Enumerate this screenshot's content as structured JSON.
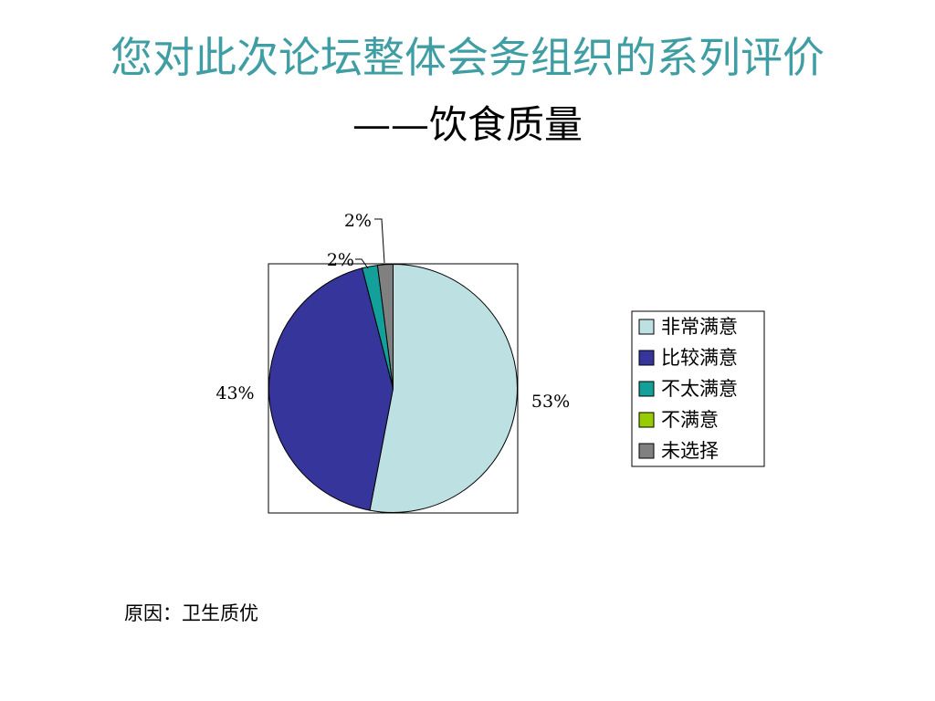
{
  "slide": {
    "title": "您对此次论坛整体会务组织的系列评价",
    "subtitle": "——饮食质量",
    "note": "原因：卫生质优"
  },
  "chart_data": {
    "type": "pie",
    "categories": [
      "非常满意",
      "比较满意",
      "不太满意",
      "不满意",
      "未选择"
    ],
    "values": [
      53,
      43,
      2,
      0,
      2
    ],
    "data_labels": [
      "53%",
      "43%",
      "2%",
      "",
      "2%"
    ],
    "colors": [
      "#bde0e3",
      "#35359b",
      "#14a09a",
      "#99cc00",
      "#808080"
    ],
    "legend_position": "right",
    "start_angle_deg": 0,
    "direction": "clockwise"
  }
}
